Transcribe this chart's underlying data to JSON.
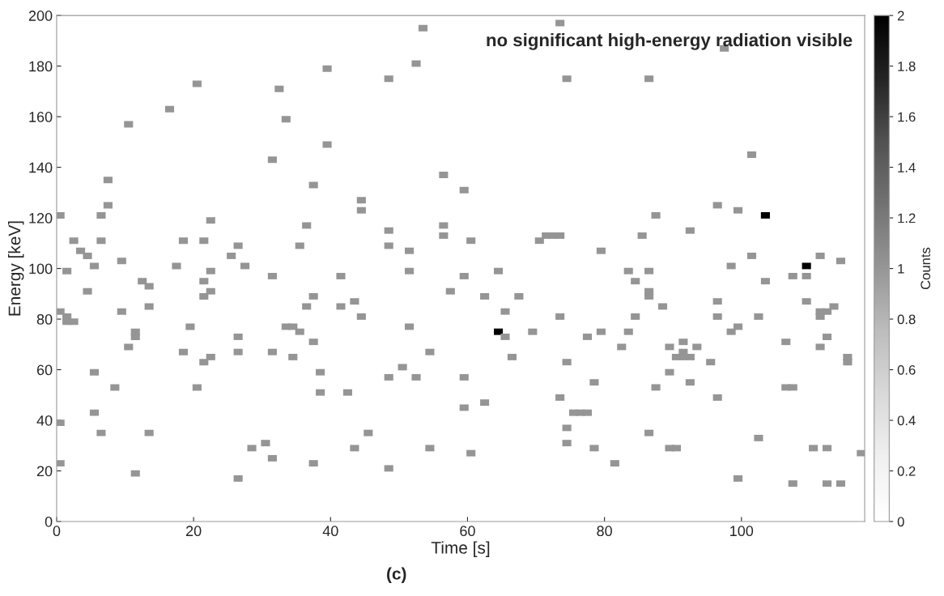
{
  "chart_data": {
    "type": "scatter",
    "xlabel": "Time [s]",
    "ylabel": "Energy [keV]",
    "clabel": "Counts",
    "marker": "square",
    "grid": false,
    "xlim": [
      0,
      118
    ],
    "ylim": [
      0,
      200
    ],
    "xticks": [
      0,
      20,
      40,
      60,
      80,
      100
    ],
    "yticks": [
      0,
      20,
      40,
      60,
      80,
      100,
      120,
      140,
      160,
      180,
      200
    ],
    "clim": [
      0,
      2
    ],
    "cticks": [
      0,
      0.2,
      0.4,
      0.6,
      0.8,
      1,
      1.2,
      1.4,
      1.6,
      1.8,
      2
    ],
    "annotations": [
      "no significant high-energy radiation visible",
      "(c)"
    ],
    "series": [
      {
        "x": [
          0.5,
          0.5,
          0.5,
          0.5,
          1.5,
          1.5,
          1.5,
          2.5,
          2.5,
          3.5,
          4.5,
          4.5,
          5.5,
          5.5,
          5.5,
          6.5,
          6.5,
          6.5,
          7.5,
          7.5,
          8.5,
          9.5,
          9.5,
          10.5,
          10.5,
          11.5,
          11.5,
          11.5,
          12.5,
          13.5,
          13.5,
          13.5,
          16.5,
          17.5,
          18.5,
          18.5,
          19.5,
          20.5,
          20.5,
          21.5,
          21.5,
          21.5,
          21.5,
          22.5,
          22.5,
          22.5,
          22.5,
          25.5,
          26.5,
          26.5,
          26.5,
          26.5,
          27.5,
          28.5,
          30.5,
          31.5,
          31.5,
          31.5,
          31.5,
          32.5,
          33.5,
          33.5,
          34.5,
          34.5,
          35.5,
          35.5,
          36.5,
          36.5,
          37.5,
          37.5,
          37.5,
          37.5,
          38.5,
          38.5,
          39.5,
          39.5,
          41.5,
          41.5,
          42.5,
          43.5,
          43.5,
          44.5,
          44.5,
          44.5,
          45.5,
          48.5,
          48.5,
          48.5,
          48.5,
          48.5,
          50.5,
          51.5,
          51.5,
          51.5,
          52.5,
          52.5,
          53.5,
          54.5,
          54.5,
          56.5,
          56.5,
          56.5,
          57.5,
          59.5,
          59.5,
          59.5,
          59.5,
          60.5,
          60.5,
          62.5,
          62.5,
          64.5,
          64.5,
          65.5,
          65.5,
          66.5,
          67.5,
          69.5,
          70.5,
          71.5,
          72.5,
          73.5,
          73.5,
          73.5,
          73.5,
          74.5,
          74.5,
          74.5,
          74.5,
          75.5,
          76.5,
          77.5,
          77.5,
          78.5,
          78.5,
          79.5,
          79.5,
          81.5,
          82.5,
          83.5,
          83.5,
          84.5,
          84.5,
          85.5,
          86.5,
          86.5,
          86.5,
          86.5,
          86.5,
          87.5,
          87.5,
          88.5,
          89.5,
          89.5,
          89.5,
          90.5,
          90.5,
          91.5,
          91.5,
          91.5,
          92.5,
          92.5,
          92.5,
          93.5,
          95.5,
          96.5,
          96.5,
          96.5,
          96.5,
          97.5,
          98.5,
          98.5,
          99.5,
          99.5,
          99.5,
          101.5,
          101.5,
          102.5,
          102.5,
          103.5,
          103.5,
          106.5,
          106.5,
          107.5,
          107.5,
          107.5,
          109.5,
          109.5,
          109.5,
          110.5,
          111.5,
          111.5,
          111.5,
          111.5,
          112.5,
          112.5,
          112.5,
          112.5,
          113.5,
          114.5,
          114.5,
          115.5,
          115.5,
          117.5
        ],
        "values": [
          121,
          83,
          39,
          23,
          99,
          81,
          79,
          79,
          111,
          107,
          105,
          91,
          101,
          59,
          43,
          121,
          111,
          35,
          135,
          125,
          53,
          103,
          83,
          157,
          69,
          75,
          73,
          19,
          95,
          93,
          85,
          35,
          163,
          101,
          111,
          67,
          77,
          173,
          53,
          111,
          95,
          89,
          63,
          119,
          99,
          91,
          65,
          105,
          109,
          73,
          67,
          17,
          101,
          29,
          31,
          143,
          97,
          67,
          25,
          171,
          159,
          77,
          77,
          65,
          109,
          75,
          117,
          85,
          133,
          89,
          71,
          23,
          59,
          51,
          179,
          149,
          97,
          85,
          51,
          87,
          29,
          127,
          123,
          81,
          35,
          175,
          115,
          109,
          57,
          21,
          61,
          107,
          99,
          77,
          181,
          57,
          195,
          67,
          29,
          137,
          117,
          113,
          91,
          131,
          97,
          57,
          45,
          111,
          27,
          89,
          47,
          99,
          75,
          83,
          73,
          65,
          89,
          75,
          111,
          113,
          113,
          197,
          113,
          81,
          49,
          175,
          63,
          37,
          31,
          43,
          43,
          43,
          73,
          55,
          29,
          107,
          75,
          23,
          69,
          99,
          75,
          95,
          81,
          113,
          175,
          99,
          91,
          89,
          35,
          121,
          53,
          85,
          69,
          59,
          29,
          29,
          65,
          71,
          67,
          65,
          65,
          115,
          55,
          69,
          63,
          125,
          87,
          81,
          49,
          187,
          101,
          75,
          123,
          77,
          17,
          145,
          105,
          81,
          33,
          121,
          95,
          71,
          53,
          53,
          97,
          15,
          101,
          97,
          87,
          29,
          105,
          83,
          81,
          69,
          83,
          73,
          29,
          15,
          85,
          103,
          15,
          65,
          63,
          27
        ],
        "cvalues": [
          1,
          1,
          1,
          1,
          1,
          1,
          1,
          1,
          1,
          1,
          1,
          1,
          1,
          1,
          1,
          1,
          1,
          1,
          1,
          1,
          1,
          1,
          1,
          1,
          1,
          1,
          1,
          1,
          1,
          1,
          1,
          1,
          1,
          1,
          1,
          1,
          1,
          1,
          1,
          1,
          1,
          1,
          1,
          1,
          1,
          1,
          1,
          1,
          1,
          1,
          1,
          1,
          1,
          1,
          1,
          1,
          1,
          1,
          1,
          1,
          1,
          1,
          1,
          1,
          1,
          1,
          1,
          1,
          1,
          1,
          1,
          1,
          1,
          1,
          1,
          1,
          1,
          1,
          1,
          1,
          1,
          1,
          1,
          1,
          1,
          1,
          1,
          1,
          1,
          1,
          1,
          1,
          1,
          1,
          1,
          1,
          1,
          1,
          1,
          1,
          1,
          1,
          1,
          1,
          1,
          1,
          1,
          1,
          1,
          1,
          1,
          1,
          2,
          1,
          1,
          1,
          1,
          1,
          1,
          1,
          1,
          1,
          1,
          1,
          1,
          1,
          1,
          1,
          1,
          1,
          1,
          1,
          1,
          1,
          1,
          1,
          1,
          1,
          1,
          1,
          1,
          1,
          1,
          1,
          1,
          1,
          1,
          1,
          1,
          1,
          1,
          1,
          1,
          1,
          1,
          1,
          1,
          1,
          1,
          1,
          1,
          1,
          1,
          1,
          1,
          1,
          1,
          1,
          1,
          1,
          1,
          1,
          1,
          1,
          1,
          1,
          1,
          1,
          1,
          2,
          1,
          1,
          1,
          1,
          1,
          1,
          2,
          1,
          1,
          1,
          1,
          1,
          1,
          1,
          1,
          1,
          1,
          1,
          1,
          1,
          1,
          1,
          1,
          1
        ]
      }
    ]
  }
}
